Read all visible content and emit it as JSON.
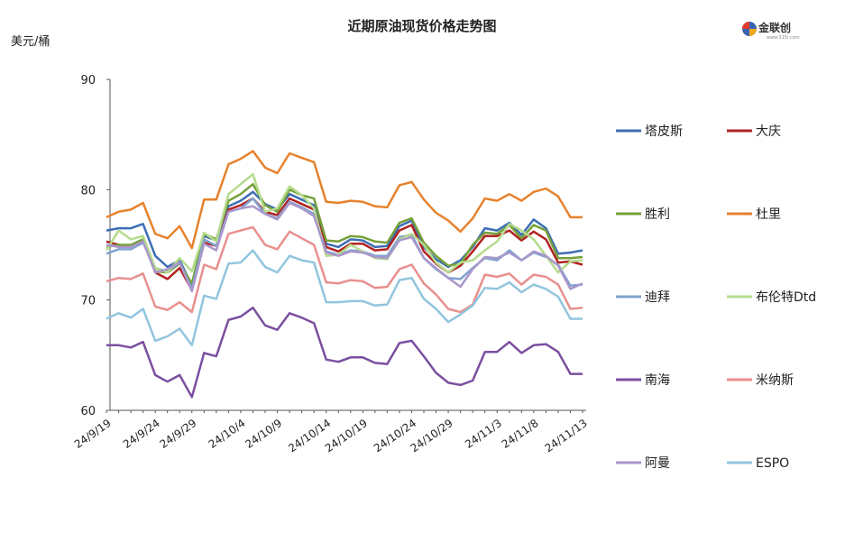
{
  "chart_data": {
    "type": "line",
    "title": "近期原油现货价格走势图",
    "ylabel": "美元/桶",
    "ylim": [
      60,
      90
    ],
    "yticks": [
      60,
      70,
      80,
      90
    ],
    "grid": false,
    "legend_position": "right",
    "x_tick_labels": [
      "24/9/19",
      "24/9/24",
      "24/9/29",
      "24/10/4",
      "24/10/9",
      "24/10/14",
      "24/10/19",
      "24/10/24",
      "24/10/29",
      "24/11/3",
      "24/11/8",
      "24/11/13"
    ],
    "x": [
      "24/9/19",
      "24/9/20",
      "24/9/23",
      "24/9/24",
      "24/9/25",
      "24/9/26",
      "24/9/27",
      "24/9/30",
      "24/10/1",
      "24/10/2",
      "24/10/3",
      "24/10/4",
      "24/10/7",
      "24/10/8",
      "24/10/9",
      "24/10/10",
      "24/10/11",
      "24/10/14",
      "24/10/15",
      "24/10/16",
      "24/10/17",
      "24/10/18",
      "24/10/21",
      "24/10/22",
      "24/10/23",
      "24/10/24",
      "24/10/25",
      "24/10/28",
      "24/10/29",
      "24/10/30",
      "24/10/31",
      "24/11/1",
      "24/11/4",
      "24/11/5",
      "24/11/6",
      "24/11/7",
      "24/11/8",
      "24/11/11",
      "24/11/12",
      "24/11/13"
    ],
    "series": [
      {
        "name": "塔皮斯",
        "color": "#3c6eb4",
        "values": [
          76.3,
          76.5,
          76.5,
          76.9,
          74.0,
          73.0,
          73.6,
          71.3,
          75.8,
          75.4,
          78.5,
          79.0,
          79.8,
          78.7,
          78.2,
          79.6,
          79.1,
          78.6,
          75.1,
          74.8,
          75.5,
          75.4,
          74.8,
          74.9,
          76.7,
          77.2,
          74.8,
          73.7,
          73.0,
          73.6,
          74.8,
          76.5,
          76.3,
          77.0,
          75.9,
          77.3,
          76.5,
          74.2,
          74.3,
          74.5
        ]
      },
      {
        "name": "大庆",
        "color": "#b22222",
        "values": [
          75.3,
          75.0,
          74.8,
          75.4,
          72.5,
          71.9,
          72.9,
          70.9,
          75.2,
          74.9,
          78.2,
          78.6,
          79.2,
          78.0,
          77.7,
          79.2,
          78.7,
          78.2,
          74.8,
          74.4,
          75.1,
          75.1,
          74.5,
          74.6,
          76.3,
          76.8,
          74.4,
          73.3,
          72.5,
          73.1,
          74.4,
          75.8,
          75.8,
          76.3,
          75.4,
          76.2,
          75.5,
          73.4,
          73.5,
          73.2
        ]
      },
      {
        "name": "胜利",
        "color": "#76a03a",
        "values": [
          74.8,
          75.0,
          75.0,
          75.5,
          72.6,
          72.5,
          73.3,
          71.5,
          76.0,
          75.5,
          79.0,
          79.6,
          80.5,
          78.6,
          78.0,
          80.0,
          79.5,
          79.2,
          75.4,
          75.3,
          75.8,
          75.7,
          75.3,
          75.2,
          77.0,
          77.4,
          75.2,
          74.0,
          73.1,
          73.3,
          75.0,
          76.1,
          76.0,
          76.8,
          75.6,
          76.8,
          76.3,
          73.8,
          73.8,
          73.9
        ]
      },
      {
        "name": "杜里",
        "color": "#e6822d",
        "values": [
          77.5,
          78.0,
          78.2,
          78.8,
          76.0,
          75.6,
          76.7,
          74.7,
          79.1,
          79.1,
          82.3,
          82.8,
          83.5,
          82.0,
          81.5,
          83.3,
          82.9,
          82.5,
          78.9,
          78.8,
          79.0,
          78.9,
          78.5,
          78.4,
          80.4,
          80.7,
          79.1,
          77.9,
          77.2,
          76.2,
          77.4,
          79.2,
          79.0,
          79.6,
          79.0,
          79.8,
          80.1,
          79.4,
          77.5,
          77.5
        ]
      },
      {
        "name": "迪拜",
        "color": "#7fa3cf",
        "values": [
          74.2,
          74.6,
          74.6,
          75.2,
          72.9,
          72.6,
          73.4,
          71.0,
          75.5,
          74.9,
          78.0,
          78.3,
          79.2,
          77.8,
          77.4,
          78.9,
          78.4,
          77.8,
          74.4,
          74.1,
          74.5,
          74.4,
          74.0,
          74.0,
          75.7,
          75.9,
          73.8,
          72.8,
          72.0,
          71.9,
          72.9,
          73.8,
          73.6,
          74.5,
          73.6,
          74.3,
          73.9,
          73.2,
          71.3,
          71.4
        ]
      },
      {
        "name": "布伦特Dtd",
        "color": "#b5db8c",
        "values": [
          74.5,
          76.3,
          75.5,
          75.8,
          72.9,
          72.5,
          73.8,
          72.6,
          76.1,
          75.3,
          79.6,
          80.5,
          81.4,
          78.0,
          78.3,
          80.3,
          79.5,
          78.3,
          74.0,
          74.1,
          75.0,
          74.4,
          73.8,
          73.7,
          75.5,
          76.0,
          75.0,
          73.4,
          72.5,
          73.4,
          73.6,
          74.5,
          75.3,
          76.9,
          76.3,
          75.5,
          74.0,
          72.5,
          73.5,
          73.6
        ]
      },
      {
        "name": "南海",
        "color": "#7b4fa0",
        "values": [
          65.9,
          65.9,
          65.7,
          66.2,
          63.2,
          62.6,
          63.2,
          61.2,
          65.2,
          64.9,
          68.2,
          68.5,
          69.3,
          67.7,
          67.3,
          68.8,
          68.4,
          67.9,
          64.6,
          64.4,
          64.8,
          64.8,
          64.3,
          64.2,
          66.1,
          66.3,
          64.9,
          63.4,
          62.5,
          62.3,
          62.7,
          65.3,
          65.3,
          66.2,
          65.2,
          65.9,
          66.0,
          65.3,
          63.3,
          63.3
        ]
      },
      {
        "name": "米纳斯",
        "color": "#e8908e",
        "values": [
          71.7,
          72.0,
          71.9,
          72.4,
          69.4,
          69.1,
          69.8,
          68.9,
          73.2,
          72.8,
          76.0,
          76.3,
          76.6,
          75.0,
          74.6,
          76.2,
          75.6,
          75.0,
          71.6,
          71.5,
          71.8,
          71.7,
          71.1,
          71.2,
          72.8,
          73.2,
          71.5,
          70.5,
          69.2,
          68.9,
          69.6,
          72.3,
          72.1,
          72.4,
          71.4,
          72.3,
          72.1,
          71.4,
          69.2,
          69.3
        ]
      },
      {
        "name": "阿曼",
        "color": "#aa97cc",
        "values": [
          75.0,
          74.8,
          74.8,
          75.3,
          72.5,
          72.8,
          73.4,
          70.8,
          75.1,
          74.5,
          78.0,
          78.3,
          78.5,
          77.8,
          77.3,
          78.8,
          78.3,
          77.6,
          74.3,
          74.0,
          74.4,
          74.3,
          73.9,
          73.8,
          75.4,
          75.7,
          73.8,
          72.9,
          72.0,
          71.2,
          72.8,
          73.9,
          73.8,
          74.3,
          73.6,
          74.4,
          74.0,
          73.1,
          71.0,
          71.5
        ]
      },
      {
        "name": "ESPO",
        "color": "#92c5de",
        "values": [
          68.3,
          68.8,
          68.4,
          69.2,
          66.3,
          66.7,
          67.4,
          65.9,
          70.4,
          70.1,
          73.3,
          73.4,
          74.5,
          73.0,
          72.5,
          74.0,
          73.6,
          73.4,
          69.8,
          69.8,
          69.9,
          69.9,
          69.5,
          69.6,
          71.8,
          72.0,
          70.1,
          69.2,
          68.0,
          68.7,
          69.5,
          71.1,
          71.0,
          71.6,
          70.7,
          71.4,
          71.0,
          70.3,
          68.3,
          68.3
        ]
      }
    ]
  },
  "logo": {
    "name": "金联创",
    "sub": "www.315i.com"
  }
}
